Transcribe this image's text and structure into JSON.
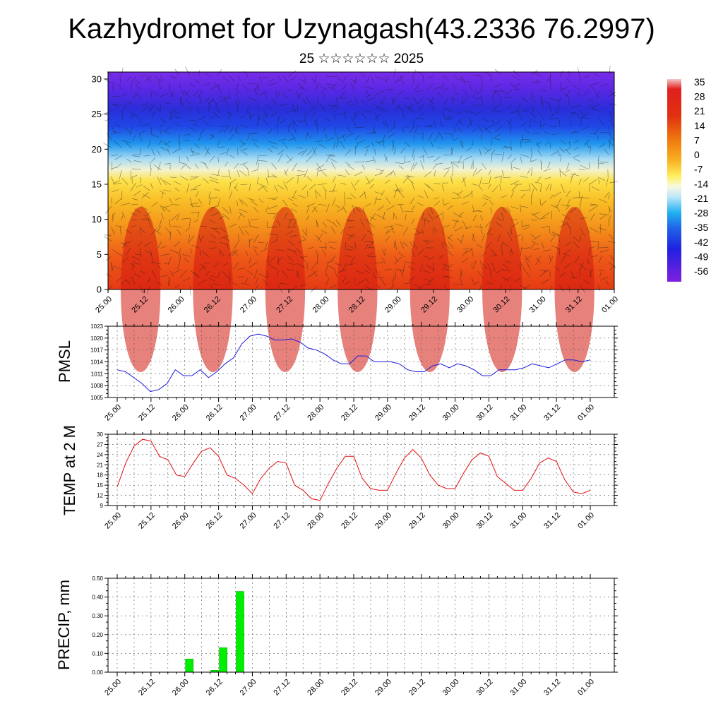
{
  "title": "Kazhydromet for Uzynagash(43.2336 76.2997)",
  "subtitle": "25 ☆☆☆☆☆☆ 2025",
  "time_labels": [
    "25.00",
    "25.12",
    "26.00",
    "26.12",
    "27.00",
    "27.12",
    "28.00",
    "28.12",
    "29.00",
    "29.12",
    "30.00",
    "30.12",
    "31.00",
    "31.12",
    "01.00"
  ],
  "colors": {
    "pmsl": "#1a1adf",
    "temp": "#e01010",
    "precip": "#00ee00"
  },
  "chart_data": [
    {
      "type": "heatmap",
      "description_axis": "vertical levels",
      "ylim": [
        0,
        31
      ],
      "yticks": [
        0,
        5,
        10,
        15,
        20,
        25,
        30
      ],
      "x_ticks": [
        "25.00",
        "25.12",
        "26.00",
        "26.12",
        "27.00",
        "27.12",
        "28.00",
        "28.12",
        "29.00",
        "29.12",
        "30.00",
        "30.12",
        "31.00",
        "31.12",
        "01.00"
      ],
      "colorbar_labels": [
        "35",
        "28",
        "21",
        "14",
        "7",
        "0",
        "-7",
        "-14",
        "-21",
        "-28",
        "-35",
        "-42",
        "-49",
        "-56"
      ]
    },
    {
      "type": "line",
      "ylabel": "PMSL",
      "ylim": [
        1005,
        1023
      ],
      "yticks": [
        1005,
        1008,
        1011,
        1014,
        1017,
        1020,
        1023
      ],
      "x_ticks": [
        "25.00",
        "25.12",
        "26.00",
        "26.12",
        "27.00",
        "27.12",
        "28.00",
        "28.12",
        "29.00",
        "29.12",
        "30.00",
        "30.12",
        "31.00",
        "31.12",
        "01.00"
      ],
      "values": [
        1012,
        1011.5,
        1010,
        1008.5,
        1006.5,
        1007,
        1008.5,
        1012,
        1010.5,
        1010.5,
        1012,
        1010,
        1011.5,
        1013.5,
        1015,
        1018.5,
        1020.5,
        1021,
        1020.5,
        1019.5,
        1019.5,
        1019.8,
        1019,
        1017.5,
        1017,
        1016,
        1014.5,
        1013.5,
        1013.5,
        1015.5,
        1015.5,
        1014,
        1014,
        1014,
        1013.5,
        1012,
        1011.5,
        1011.5,
        1013,
        1013.5,
        1012.5,
        1013.5,
        1013,
        1012,
        1010.5,
        1010.5,
        1012,
        1012,
        1012,
        1012.5,
        1013.5,
        1013,
        1012.5,
        1013.5,
        1014.5,
        1014.5,
        1014,
        1014.5
      ]
    },
    {
      "type": "line",
      "ylabel": "TEMP at 2 M",
      "ylim": [
        9,
        30
      ],
      "yticks": [
        9,
        12,
        15,
        18,
        21,
        24,
        27,
        30
      ],
      "x_ticks": [
        "25.00",
        "25.12",
        "26.00",
        "26.12",
        "27.00",
        "27.12",
        "28.00",
        "28.12",
        "29.00",
        "29.12",
        "30.00",
        "30.12",
        "31.00",
        "31.12",
        "01.00"
      ],
      "values": [
        14.5,
        21.5,
        26.5,
        28.5,
        28,
        23.5,
        22.5,
        18,
        17.5,
        21.5,
        25,
        26,
        23.5,
        18,
        17,
        15,
        12.5,
        17,
        20,
        22,
        21.5,
        15,
        13.5,
        11,
        10.5,
        15.5,
        20,
        23.5,
        23.5,
        17,
        14,
        13.5,
        13.5,
        18.5,
        23,
        25.5,
        23,
        18,
        15,
        14,
        14,
        18.5,
        22.5,
        24.5,
        23.5,
        17.5,
        15.5,
        13.5,
        13.5,
        17,
        21.5,
        23,
        22,
        16.5,
        13,
        12.5,
        13.5
      ]
    },
    {
      "type": "bar",
      "ylabel": "PRECIP, mm",
      "ylim": [
        0,
        0.5
      ],
      "ytick_labels": [
        "0.00",
        "0.10",
        "0.20",
        "0.30",
        "0.40",
        "0.50"
      ],
      "x_ticks": [
        "25.00",
        "25.12",
        "26.00",
        "26.12",
        "27.00",
        "27.12",
        "28.00",
        "28.12",
        "29.00",
        "29.12",
        "30.00",
        "30.12",
        "31.00",
        "31.12",
        "01.00"
      ],
      "values": [
        0,
        0,
        0,
        0,
        0,
        0,
        0,
        0,
        0.07,
        0,
        0,
        0.01,
        0.13,
        0,
        0.43,
        0,
        0,
        0,
        0,
        0,
        0,
        0,
        0,
        0,
        0,
        0,
        0,
        0,
        0,
        0,
        0,
        0,
        0,
        0,
        0,
        0,
        0,
        0,
        0,
        0,
        0,
        0,
        0,
        0,
        0,
        0,
        0,
        0,
        0,
        0,
        0,
        0,
        0,
        0,
        0,
        0,
        0
      ]
    }
  ]
}
